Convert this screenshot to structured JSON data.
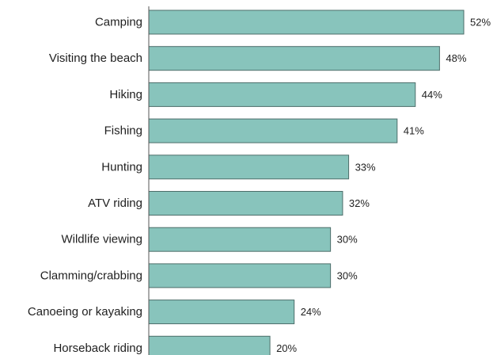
{
  "chart_data": {
    "type": "bar",
    "orientation": "horizontal",
    "categories": [
      "Camping",
      "Visiting the beach",
      "Hiking",
      "Fishing",
      "Hunting",
      "ATV riding",
      "Wildlife viewing",
      "Clamming/crabbing",
      "Canoeing or kayaking",
      "Horseback riding"
    ],
    "values": [
      52,
      48,
      44,
      41,
      33,
      32,
      30,
      30,
      24,
      20
    ],
    "value_labels": [
      "52%",
      "48%",
      "44%",
      "41%",
      "33%",
      "32%",
      "30%",
      "30%",
      "24%",
      "20%"
    ],
    "xlim": [
      0,
      52
    ],
    "grid": false,
    "legend": "none",
    "title": "",
    "xlabel": "",
    "ylabel": "",
    "colors": {
      "bar_fill": "#88c4bc",
      "bar_stroke": "#4d6e6a",
      "axis": "#555555",
      "text": "#1f1f1f"
    }
  }
}
